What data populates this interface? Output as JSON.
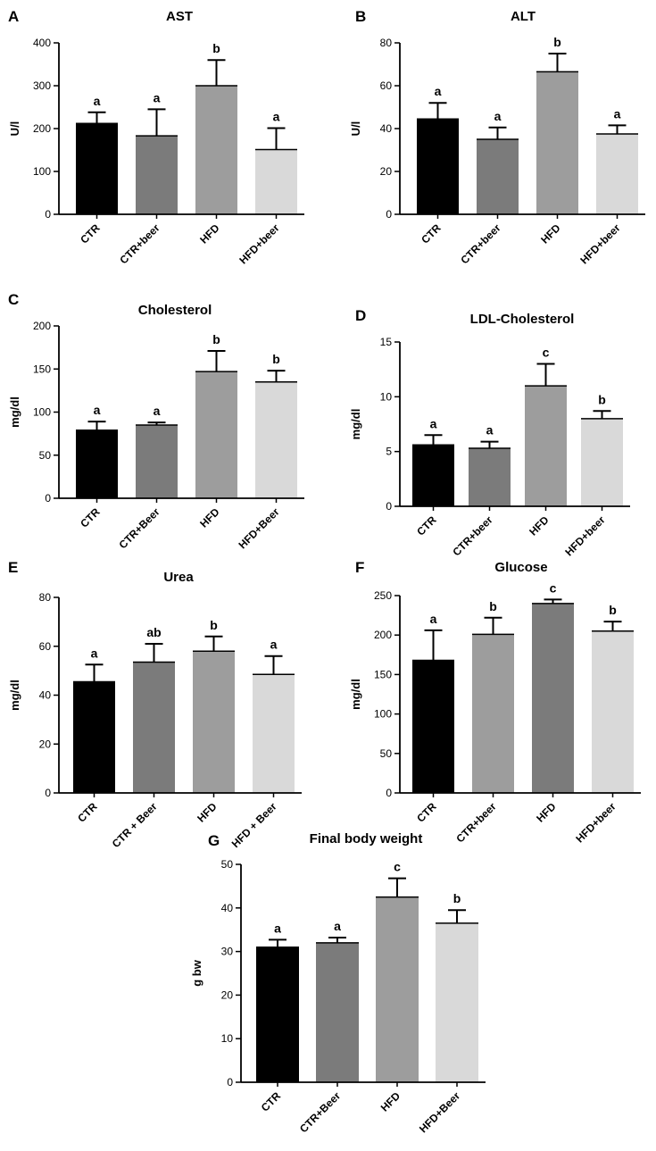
{
  "chart_data": [
    {
      "letter": "A",
      "type": "bar",
      "title": "AST",
      "ylabel": "U/l",
      "ylim": [
        0,
        400
      ],
      "yticks": [
        0,
        100,
        200,
        300,
        400
      ],
      "categories": [
        "CTR",
        "CTR+beer",
        "HFD",
        "HFD+beer"
      ],
      "values": [
        212,
        183,
        300,
        151
      ],
      "errors": [
        26,
        62,
        60,
        50
      ],
      "significance": [
        "a",
        "a",
        "b",
        "a"
      ],
      "colors": [
        "#000000",
        "#7b7b7b",
        "#9d9d9d",
        "#d9d9d9"
      ]
    },
    {
      "letter": "B",
      "type": "bar",
      "title": "ALT",
      "ylabel": "U/l",
      "ylim": [
        0,
        80
      ],
      "yticks": [
        0,
        20,
        40,
        60,
        80
      ],
      "categories": [
        "CTR",
        "CTR+beer",
        "HFD",
        "HFD+beer"
      ],
      "values": [
        44.5,
        35,
        66.5,
        37.5
      ],
      "errors": [
        7.5,
        5.5,
        8.5,
        4
      ],
      "significance": [
        "a",
        "a",
        "b",
        "a"
      ],
      "colors": [
        "#000000",
        "#7b7b7b",
        "#9d9d9d",
        "#d9d9d9"
      ]
    },
    {
      "letter": "C",
      "type": "bar",
      "title": "Cholesterol",
      "ylabel": "mg/dl",
      "ylim": [
        0,
        200
      ],
      "yticks": [
        0,
        50,
        100,
        150,
        200
      ],
      "categories": [
        "CTR",
        "CTR+Beer",
        "HFD",
        "HFD+Beer"
      ],
      "values": [
        79,
        85,
        147,
        135
      ],
      "errors": [
        10,
        3,
        24,
        13
      ],
      "significance": [
        "a",
        "a",
        "b",
        "b"
      ],
      "colors": [
        "#000000",
        "#7b7b7b",
        "#9d9d9d",
        "#d9d9d9"
      ]
    },
    {
      "letter": "D",
      "type": "bar",
      "title": "LDL-Cholesterol",
      "ylabel": "mg/dl",
      "ylim": [
        0,
        15
      ],
      "yticks": [
        0,
        5,
        10,
        15
      ],
      "categories": [
        "CTR",
        "CTR+beer",
        "HFD",
        "HFD+beer"
      ],
      "values": [
        5.6,
        5.3,
        11.0,
        8.0
      ],
      "errors": [
        0.9,
        0.6,
        2.0,
        0.7
      ],
      "significance": [
        "a",
        "a",
        "c",
        "b"
      ],
      "colors": [
        "#000000",
        "#7b7b7b",
        "#9d9d9d",
        "#d9d9d9"
      ]
    },
    {
      "letter": "E",
      "type": "bar",
      "title": "Urea",
      "ylabel": "mg/dl",
      "ylim": [
        0,
        80
      ],
      "yticks": [
        0,
        20,
        40,
        60,
        80
      ],
      "categories": [
        "CTR",
        "CTR + Beer",
        "HFD",
        "HFD + Beer"
      ],
      "values": [
        45.5,
        53.5,
        58,
        48.5
      ],
      "errors": [
        7,
        7.5,
        6,
        7.5
      ],
      "significance": [
        "a",
        "ab",
        "b",
        "a"
      ],
      "colors": [
        "#000000",
        "#7b7b7b",
        "#9d9d9d",
        "#d9d9d9"
      ]
    },
    {
      "letter": "F",
      "type": "bar",
      "title": "Glucose",
      "ylabel": "mg/dl",
      "ylim": [
        0,
        250
      ],
      "yticks": [
        0,
        50,
        100,
        150,
        200,
        250
      ],
      "categories": [
        "CTR",
        "CTR+beer",
        "HFD",
        "HFD+beer"
      ],
      "values": [
        168,
        201,
        240,
        205
      ],
      "errors": [
        38,
        21,
        5,
        12
      ],
      "significance": [
        "a",
        "b",
        "c",
        "b"
      ],
      "colors": [
        "#000000",
        "#9d9d9d",
        "#7b7b7b",
        "#d9d9d9"
      ]
    },
    {
      "letter": "G",
      "type": "bar",
      "title": "Final body weight",
      "ylabel": "g bw",
      "ylim": [
        0,
        50
      ],
      "yticks": [
        0,
        10,
        20,
        30,
        40,
        50
      ],
      "categories": [
        "CTR",
        "CTR+Beer",
        "HFD",
        "HFD+Beer"
      ],
      "values": [
        31,
        32,
        42.5,
        36.5
      ],
      "errors": [
        1.7,
        1.2,
        4.3,
        3.0
      ],
      "significance": [
        "a",
        "a",
        "c",
        "b"
      ],
      "colors": [
        "#000000",
        "#7b7b7b",
        "#9d9d9d",
        "#d9d9d9"
      ]
    }
  ]
}
